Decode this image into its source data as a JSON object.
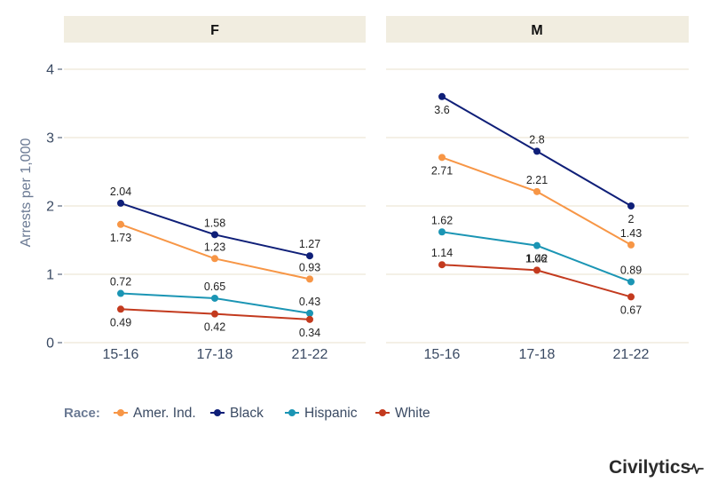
{
  "chart_data": {
    "type": "line",
    "ylabel": "Arrests per 1,000",
    "ylim": [
      0,
      4.3
    ],
    "y_ticks": [
      "0",
      "1",
      "2",
      "3",
      "4"
    ],
    "categories": [
      "15-16",
      "17-18",
      "21-22"
    ],
    "grid": true,
    "legend": {
      "title": "Race:",
      "placement": "bottom-left"
    },
    "series_styles": [
      {
        "name": "Amer. Ind.",
        "color": "#f79646"
      },
      {
        "name": "Black",
        "color": "#0f1f78"
      },
      {
        "name": "Hispanic",
        "color": "#1b95b4"
      },
      {
        "name": "White",
        "color": "#c33a1e"
      }
    ],
    "panels": [
      {
        "title": "F",
        "series": [
          {
            "name": "Amer. Ind.",
            "values": [
              1.73,
              1.23,
              0.93
            ],
            "labels": [
              "1.73",
              "1.23",
              "0.93"
            ]
          },
          {
            "name": "Black",
            "values": [
              2.04,
              1.58,
              1.27
            ],
            "labels": [
              "2.04",
              "1.58",
              "1.27"
            ]
          },
          {
            "name": "Hispanic",
            "values": [
              0.72,
              0.65,
              0.43
            ],
            "labels": [
              "0.72",
              "0.65",
              "0.43"
            ]
          },
          {
            "name": "White",
            "values": [
              0.49,
              0.42,
              0.34
            ],
            "labels": [
              "0.49",
              "0.42",
              "0.34"
            ]
          }
        ]
      },
      {
        "title": "M",
        "series": [
          {
            "name": "Amer. Ind.",
            "values": [
              2.71,
              2.21,
              1.43
            ],
            "labels": [
              "2.71",
              "2.21",
              "1.43"
            ]
          },
          {
            "name": "Black",
            "values": [
              3.6,
              2.8,
              2.0
            ],
            "labels": [
              "3.6",
              "2.8",
              "2"
            ]
          },
          {
            "name": "Hispanic",
            "values": [
              1.62,
              1.42,
              0.89
            ],
            "labels": [
              "1.62",
              "1.42",
              "0.89"
            ]
          },
          {
            "name": "White",
            "values": [
              1.14,
              1.06,
              0.67
            ],
            "labels": [
              "1.14",
              "1.06",
              "0.67"
            ]
          }
        ]
      }
    ]
  },
  "brand": {
    "name": "Civilytics"
  },
  "colors": {
    "strip": "#f1ede0",
    "grid": "#e8e1cc",
    "axis_text": "#3a4a63"
  }
}
